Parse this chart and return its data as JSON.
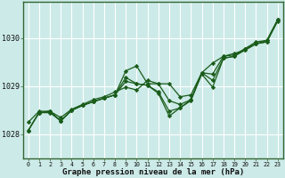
{
  "xlabel": "Graphe pression niveau de la mer (hPa)",
  "xlim": [
    -0.5,
    23.5
  ],
  "ylim": [
    1027.5,
    1030.75
  ],
  "yticks": [
    1028,
    1029,
    1030
  ],
  "xticks": [
    0,
    1,
    2,
    3,
    4,
    5,
    6,
    7,
    8,
    9,
    10,
    11,
    12,
    13,
    14,
    15,
    16,
    17,
    18,
    19,
    20,
    21,
    22,
    23
  ],
  "background_color": "#cceae8",
  "plot_bg_color": "#cceae8",
  "grid_color": "#ffffff",
  "line_color": "#1a5c1a",
  "border_color": "#336633",
  "figsize": [
    3.2,
    2.0
  ],
  "dpi": 100,
  "series": [
    [
      1028.25,
      1028.48,
      1028.48,
      1028.35,
      1028.52,
      1028.62,
      1028.72,
      1028.78,
      1028.88,
      1028.98,
      1028.92,
      1029.12,
      1029.05,
      1029.05,
      1028.78,
      1028.82,
      1029.28,
      1029.48,
      1029.62,
      1029.68,
      1029.75,
      1029.88,
      1029.92,
      1030.35
    ],
    [
      1028.08,
      1028.45,
      1028.45,
      1028.28,
      1028.5,
      1028.6,
      1028.68,
      1028.75,
      1028.82,
      1029.32,
      1029.42,
      1029.05,
      1029.05,
      1028.7,
      1028.62,
      1028.72,
      1029.28,
      1029.25,
      1029.62,
      1029.65,
      1029.78,
      1029.92,
      1029.95,
      1030.38
    ],
    [
      1028.08,
      1028.45,
      1028.48,
      1028.28,
      1028.5,
      1028.6,
      1028.68,
      1028.75,
      1028.82,
      1029.18,
      1029.05,
      1029.02,
      1028.88,
      1028.48,
      1028.55,
      1028.72,
      1029.28,
      1029.12,
      1029.58,
      1029.62,
      1029.78,
      1029.88,
      1029.95,
      1030.38
    ],
    [
      1028.08,
      1028.45,
      1028.48,
      1028.28,
      1028.5,
      1028.6,
      1028.68,
      1028.75,
      1028.82,
      1029.1,
      1029.05,
      1029.02,
      1028.85,
      1028.38,
      1028.55,
      1028.7,
      1029.25,
      1028.98,
      1029.58,
      1029.62,
      1029.75,
      1029.88,
      1029.92,
      1030.38
    ]
  ]
}
